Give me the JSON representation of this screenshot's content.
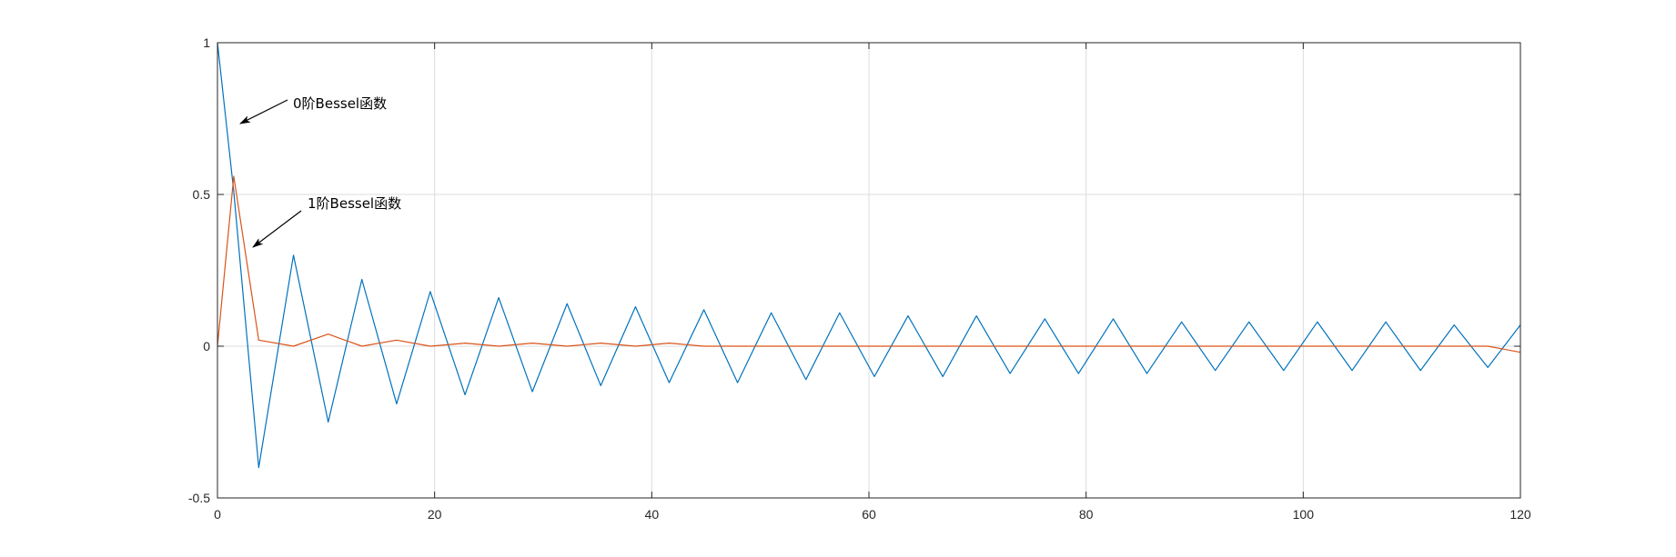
{
  "chart_data": {
    "type": "line",
    "title": "",
    "xlabel": "",
    "ylabel": "",
    "xlim": [
      0,
      120
    ],
    "ylim": [
      -0.5,
      1
    ],
    "grid": true,
    "x_ticks": [
      0,
      20,
      40,
      60,
      80,
      100,
      120
    ],
    "y_ticks": [
      -0.5,
      0,
      0.5,
      1
    ],
    "x_tick_labels": [
      "0",
      "20",
      "40",
      "60",
      "80",
      "100",
      "120"
    ],
    "y_tick_labels": [
      "-0.5",
      "0",
      "0.5",
      "1"
    ],
    "x": [
      0,
      1.5,
      3.8,
      7.0,
      10.2,
      13.3,
      16.5,
      19.6,
      22.8,
      25.9,
      29.0,
      32.2,
      35.3,
      38.5,
      41.6,
      44.8,
      47.9,
      51.0,
      54.2,
      57.3,
      60.5,
      63.6,
      66.8,
      69.9,
      73.0,
      76.2,
      79.3,
      82.5,
      85.6,
      88.8,
      91.9,
      95.0,
      98.2,
      101.3,
      104.5,
      107.6,
      110.8,
      113.9,
      117.0,
      120
    ],
    "series": [
      {
        "color": "#0072BD",
        "values": [
          1.0,
          0.51,
          -0.4,
          0.3,
          -0.25,
          0.22,
          -0.19,
          0.18,
          -0.16,
          0.16,
          -0.15,
          0.14,
          -0.13,
          0.13,
          -0.12,
          0.12,
          -0.12,
          0.11,
          -0.11,
          0.11,
          -0.1,
          0.1,
          -0.1,
          0.1,
          -0.09,
          0.09,
          -0.09,
          0.09,
          -0.09,
          0.08,
          -0.08,
          0.08,
          -0.08,
          0.08,
          -0.08,
          0.08,
          -0.08,
          0.07,
          -0.07,
          0.07
        ]
      },
      {
        "color": "#D95319",
        "values": [
          0.0,
          0.56,
          0.02,
          -0.0,
          0.04,
          -0.0,
          0.02,
          -0.0,
          0.01,
          -0.0,
          0.01,
          -0.0,
          0.01,
          -0.0,
          0.01,
          -0.0,
          0.0,
          -0.0,
          0.0,
          -0.0,
          0.0,
          -0.0,
          0.0,
          -0.0,
          0.0,
          -0.0,
          0.0,
          -0.0,
          0.0,
          -0.0,
          0.0,
          -0.0,
          0.0,
          -0.0,
          0.0,
          -0.0,
          0.0,
          -0.0,
          0.0,
          -0.02
        ]
      }
    ],
    "annotations": [
      {
        "text": "0阶Bessel函数",
        "x": 2.0,
        "y": 0.73
      },
      {
        "text": "1阶Bessel函数",
        "x": 3.2,
        "y": 0.32
      }
    ]
  }
}
